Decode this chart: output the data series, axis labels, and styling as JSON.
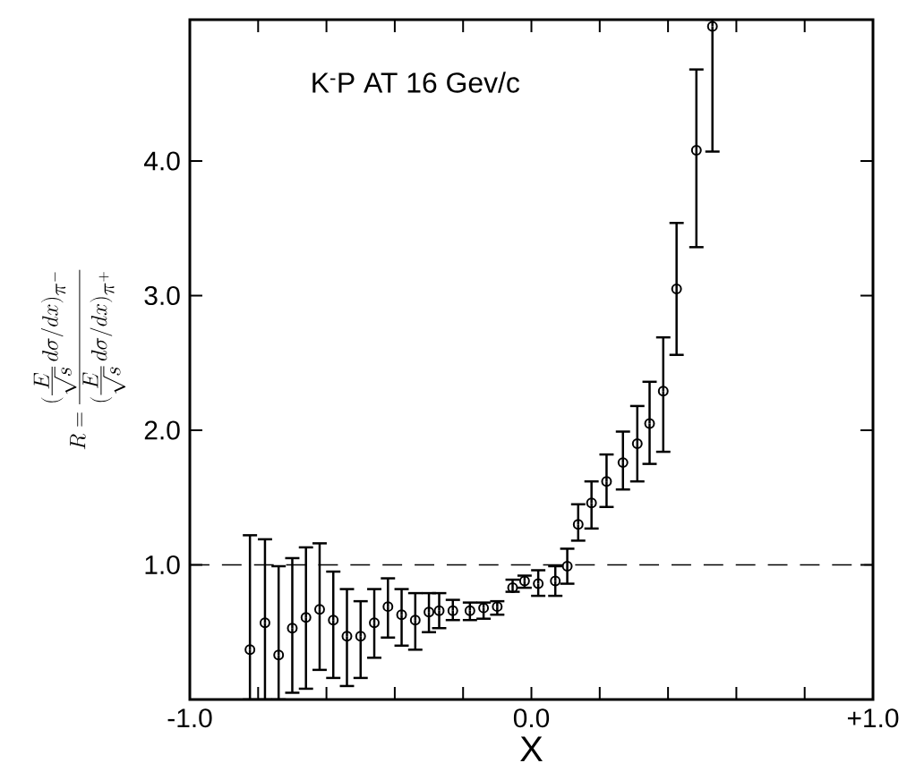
{
  "chart_data": {
    "type": "scatter",
    "title": "K$^{-}$P AT 16 Gev/c",
    "xlabel": "X",
    "ylabel": "R=\\frac{(\\frac{E}{\\sqrt{s}}\\,d\\sigma/dx)_{\\pi^-}}{(\\frac{E}{\\sqrt{s}}\\,d\\sigma/dx)_{\\pi^+}}",
    "x": [
      -0.824,
      -0.78,
      -0.74,
      -0.7,
      -0.66,
      -0.62,
      -0.58,
      -0.54,
      -0.5,
      -0.46,
      -0.42,
      -0.38,
      -0.34,
      -0.3,
      -0.27,
      -0.23,
      -0.18,
      -0.14,
      -0.1,
      -0.055,
      -0.02,
      0.02,
      0.07,
      0.105,
      0.137,
      0.176,
      0.22,
      0.268,
      0.31,
      0.346,
      0.386,
      0.425,
      0.483,
      0.53
    ],
    "series": [
      {
        "color": "#000000",
        "values": [
          0.37,
          0.57,
          0.33,
          0.53,
          0.61,
          0.67,
          0.59,
          0.47,
          0.47,
          0.57,
          0.69,
          0.63,
          0.59,
          0.65,
          0.66,
          0.66,
          0.66,
          0.68,
          0.69,
          0.83,
          0.88,
          0.86,
          0.88,
          0.99,
          1.3,
          1.46,
          1.62,
          1.76,
          1.9,
          2.05,
          2.29,
          3.05,
          4.08,
          5.0
        ],
        "errors": [
          [
            0,
            1.22
          ],
          [
            0,
            1.19
          ],
          [
            0,
            0.99
          ],
          [
            0.05,
            1.05
          ],
          [
            0.08,
            1.13
          ],
          [
            0.22,
            1.16
          ],
          [
            0.16,
            0.95
          ],
          [
            0.1,
            0.82
          ],
          [
            0.16,
            0.73
          ],
          [
            0.31,
            0.82
          ],
          [
            0.46,
            0.9
          ],
          [
            0.4,
            0.82
          ],
          [
            0.37,
            0.79
          ],
          [
            0.5,
            0.79
          ],
          [
            0.53,
            0.79
          ],
          [
            0.59,
            0.74
          ],
          [
            0.59,
            0.72
          ],
          [
            0.6,
            0.72
          ],
          [
            0.63,
            0.73
          ],
          [
            0.8,
            0.89
          ],
          [
            0.83,
            0.92
          ],
          [
            0.77,
            0.96
          ],
          [
            0.77,
            0.99
          ],
          [
            0.86,
            1.12
          ],
          [
            1.18,
            1.45
          ],
          [
            1.27,
            1.62
          ],
          [
            1.43,
            1.82
          ],
          [
            1.56,
            1.99
          ],
          [
            1.62,
            2.18
          ],
          [
            1.75,
            2.36
          ],
          [
            1.84,
            2.69
          ],
          [
            2.56,
            3.54
          ],
          [
            3.36,
            4.68
          ],
          [
            4.07,
            5.05
          ]
        ]
      }
    ],
    "xlim": [
      -1.0,
      1.0
    ],
    "ylim": [
      0,
      5.05
    ],
    "xticks": [
      {
        "value": -1.0,
        "label": "-1.0"
      },
      {
        "value": -0.8,
        "label": null
      },
      {
        "value": -0.6,
        "label": null
      },
      {
        "value": -0.4,
        "label": null
      },
      {
        "value": -0.2,
        "label": null
      },
      {
        "value": 0.0,
        "label": "0.0"
      },
      {
        "value": 0.2,
        "label": null
      },
      {
        "value": 0.4,
        "label": null
      },
      {
        "value": 0.6,
        "label": null
      },
      {
        "value": 0.8,
        "label": null
      },
      {
        "value": 1.0,
        "label": "+1.0"
      }
    ],
    "yticks": [
      {
        "value": 1,
        "label": "1.0"
      },
      {
        "value": 2,
        "label": "2.0"
      },
      {
        "value": 3,
        "label": "3.0"
      },
      {
        "value": 4,
        "label": "4.0"
      }
    ],
    "marker": "circle",
    "ref_lines": [
      {
        "axis": "y",
        "value": 1,
        "line_style": "dashed"
      }
    ]
  }
}
